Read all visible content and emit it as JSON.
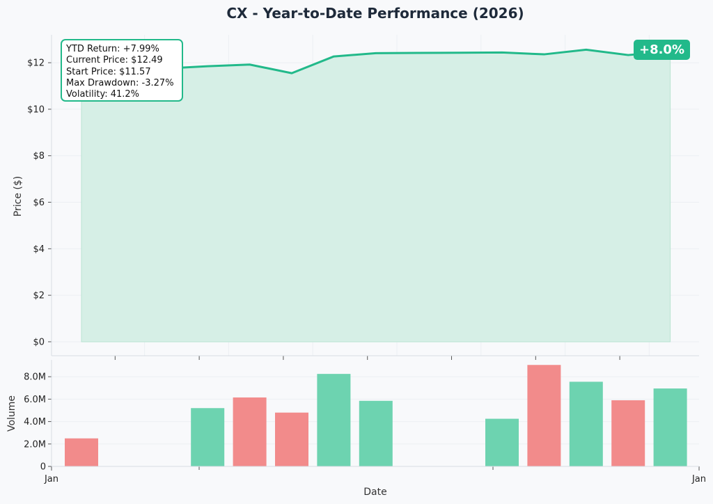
{
  "title": "CX - Year-to-Date Performance (2026)",
  "badge": "+8.0%",
  "stats": {
    "ytd_return": "YTD Return: +7.99%",
    "current_price": "Current Price: $12.49",
    "start_price": "Start Price: $11.57",
    "max_drawdown": "Max Drawdown: -3.27%",
    "volatility": "Volatility: 41.2%"
  },
  "colors": {
    "up": "#22b98a",
    "down": "#ef6f6f",
    "fill": "#d6efe6",
    "up_bar": "#6dd3b0",
    "down_bar": "#f28b8b"
  },
  "chart_data": [
    {
      "type": "area",
      "ylabel": "Price ($)",
      "ylim": [
        -0.6,
        13.2
      ],
      "yticks": [
        0,
        2,
        4,
        6,
        8,
        10,
        12
      ],
      "ytick_labels": [
        "$0",
        "$2",
        "$4",
        "$6",
        "$8",
        "$10",
        "$12"
      ],
      "x_index": [
        0,
        2,
        3,
        4,
        5,
        6,
        7,
        8,
        9,
        10,
        11,
        12,
        13,
        14
      ],
      "values": [
        11.57,
        11.75,
        11.85,
        11.92,
        11.55,
        12.27,
        12.41,
        12.42,
        12.43,
        12.44,
        12.36,
        12.56,
        12.33,
        12.49
      ],
      "grid": true
    },
    {
      "type": "bar",
      "xlabel": "Date",
      "ylabel": "Volume",
      "ylim": [
        0,
        9500000
      ],
      "yticks": [
        0,
        2000000,
        4000000,
        6000000,
        8000000
      ],
      "ytick_labels": [
        "0",
        "2.0M",
        "4.0M",
        "6.0M",
        "8.0M"
      ],
      "x_index": [
        0,
        3,
        4,
        5,
        6,
        7,
        10,
        11,
        12,
        13,
        14
      ],
      "values": [
        2500000,
        5200000,
        6150000,
        4800000,
        8250000,
        5850000,
        4250000,
        9050000,
        7550000,
        5900000,
        6950000
      ],
      "direction": [
        "down",
        "up",
        "down",
        "down",
        "up",
        "up",
        "up",
        "down",
        "up",
        "down",
        "up"
      ],
      "xtick_labels": [
        "Jan",
        "Jan"
      ],
      "grid": true
    }
  ]
}
